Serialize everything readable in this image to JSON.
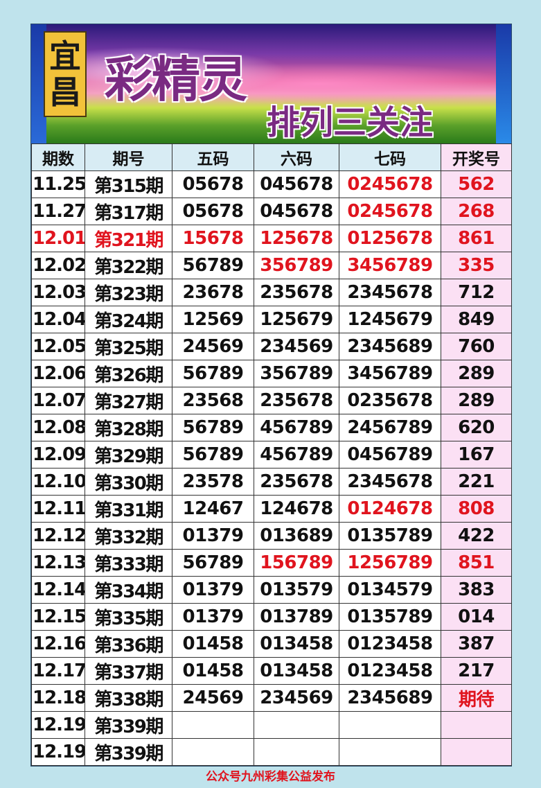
{
  "banner": {
    "city": [
      "宜",
      "昌"
    ],
    "title": "彩精灵",
    "subtitle": "排列三关注"
  },
  "table": {
    "headers": [
      "期数",
      "期号",
      "五码",
      "六码",
      "七码",
      "开奖号"
    ],
    "rows": [
      {
        "cells": [
          "11.25",
          "第315期",
          "05678",
          "045678",
          "0245678",
          "562"
        ],
        "red": [
          4,
          5
        ]
      },
      {
        "cells": [
          "11.27",
          "第317期",
          "05678",
          "045678",
          "0245678",
          "268"
        ],
        "red": [
          4,
          5
        ]
      },
      {
        "cells": [
          "12.01",
          "第321期",
          "15678",
          "125678",
          "0125678",
          "861"
        ],
        "red": [
          0,
          1,
          2,
          3,
          4,
          5
        ]
      },
      {
        "cells": [
          "12.02",
          "第322期",
          "56789",
          "356789",
          "3456789",
          "335"
        ],
        "red": [
          3,
          4,
          5
        ]
      },
      {
        "cells": [
          "12.03",
          "第323期",
          "23678",
          "235678",
          "2345678",
          "712"
        ],
        "red": []
      },
      {
        "cells": [
          "12.04",
          "第324期",
          "12569",
          "125679",
          "1245679",
          "849"
        ],
        "red": []
      },
      {
        "cells": [
          "12.05",
          "第325期",
          "24569",
          "234569",
          "2345689",
          "760"
        ],
        "red": []
      },
      {
        "cells": [
          "12.06",
          "第326期",
          "56789",
          "356789",
          "3456789",
          "289"
        ],
        "red": []
      },
      {
        "cells": [
          "12.07",
          "第327期",
          "23568",
          "235678",
          "0235678",
          "289"
        ],
        "red": []
      },
      {
        "cells": [
          "12.08",
          "第328期",
          "56789",
          "456789",
          "2456789",
          "620"
        ],
        "red": []
      },
      {
        "cells": [
          "12.09",
          "第329期",
          "56789",
          "456789",
          "0456789",
          "167"
        ],
        "red": []
      },
      {
        "cells": [
          "12.10",
          "第330期",
          "23578",
          "235678",
          "2345678",
          "221"
        ],
        "red": []
      },
      {
        "cells": [
          "12.11",
          "第331期",
          "12467",
          "124678",
          "0124678",
          "808"
        ],
        "red": [
          4,
          5
        ]
      },
      {
        "cells": [
          "12.12",
          "第332期",
          "01379",
          "013689",
          "0135789",
          "422"
        ],
        "red": []
      },
      {
        "cells": [
          "12.13",
          "第333期",
          "56789",
          "156789",
          "1256789",
          "851"
        ],
        "red": [
          3,
          4,
          5
        ]
      },
      {
        "cells": [
          "12.14",
          "第334期",
          "01379",
          "013579",
          "0134579",
          "383"
        ],
        "red": []
      },
      {
        "cells": [
          "12.15",
          "第335期",
          "01379",
          "013789",
          "0135789",
          "014"
        ],
        "red": []
      },
      {
        "cells": [
          "12.16",
          "第336期",
          "01458",
          "013458",
          "0123458",
          "387"
        ],
        "red": []
      },
      {
        "cells": [
          "12.17",
          "第337期",
          "01458",
          "013458",
          "0123458",
          "217"
        ],
        "red": []
      },
      {
        "cells": [
          "12.18",
          "第338期",
          "24569",
          "234569",
          "2345689",
          "期待"
        ],
        "red": [
          5
        ]
      },
      {
        "cells": [
          "12.19",
          "第339期",
          "",
          "",
          "",
          ""
        ],
        "red": []
      },
      {
        "cells": [
          "12.19",
          "第339期",
          "",
          "",
          "",
          ""
        ],
        "red": []
      }
    ]
  },
  "footer": "公众号九州彩集公益发布",
  "colors": {
    "highlight": "#e0141e",
    "header_bg": "#d8ecf4",
    "result_col_bg": "#fbe0f4",
    "page_bg": "#bfe3ec"
  }
}
